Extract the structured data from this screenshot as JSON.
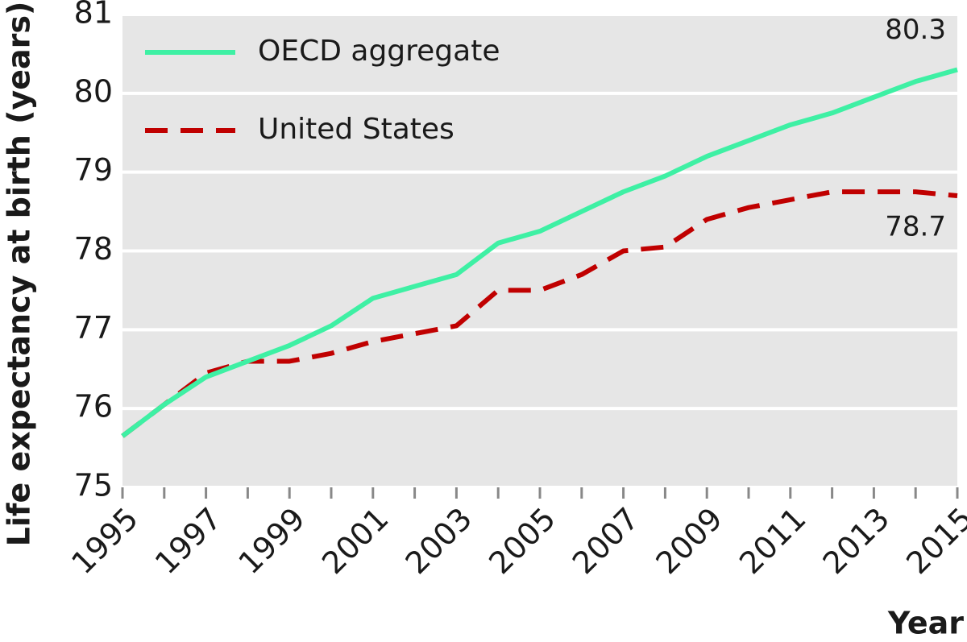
{
  "chart_data": {
    "type": "line",
    "x": [
      1995,
      1996,
      1997,
      1998,
      1999,
      2000,
      2001,
      2002,
      2003,
      2004,
      2005,
      2006,
      2007,
      2008,
      2009,
      2010,
      2011,
      2012,
      2013,
      2014,
      2015
    ],
    "series": [
      {
        "name": "OECD aggregate",
        "color": "#3ef0a4",
        "dash": false,
        "values": [
          75.65,
          76.05,
          76.4,
          76.6,
          76.8,
          77.05,
          77.4,
          77.55,
          77.7,
          78.1,
          78.25,
          78.5,
          78.75,
          78.95,
          79.2,
          79.4,
          79.6,
          79.75,
          79.95,
          80.15,
          80.3
        ]
      },
      {
        "name": "United States",
        "color": "#c00000",
        "dash": true,
        "values": [
          75.65,
          76.05,
          76.45,
          76.6,
          76.6,
          76.7,
          76.85,
          76.95,
          77.05,
          77.5,
          77.5,
          77.7,
          78.0,
          78.05,
          78.4,
          78.55,
          78.65,
          78.75,
          78.75,
          78.75,
          78.7
        ]
      }
    ],
    "annotations": [
      {
        "text": "80.3",
        "x": 2015,
        "y": 80.3
      },
      {
        "text": "78.7",
        "x": 2015,
        "y": 78.7
      }
    ],
    "xlabel": "Year",
    "ylabel": "Life expectancy at birth (years)",
    "xlim": [
      1995,
      2015
    ],
    "xticks": [
      1995,
      1997,
      1999,
      2001,
      2003,
      2005,
      2007,
      2009,
      2011,
      2013,
      2015
    ],
    "ylim": [
      75,
      81
    ],
    "yticks": [
      75,
      76,
      77,
      78,
      79,
      80,
      81
    ],
    "grid": true
  }
}
